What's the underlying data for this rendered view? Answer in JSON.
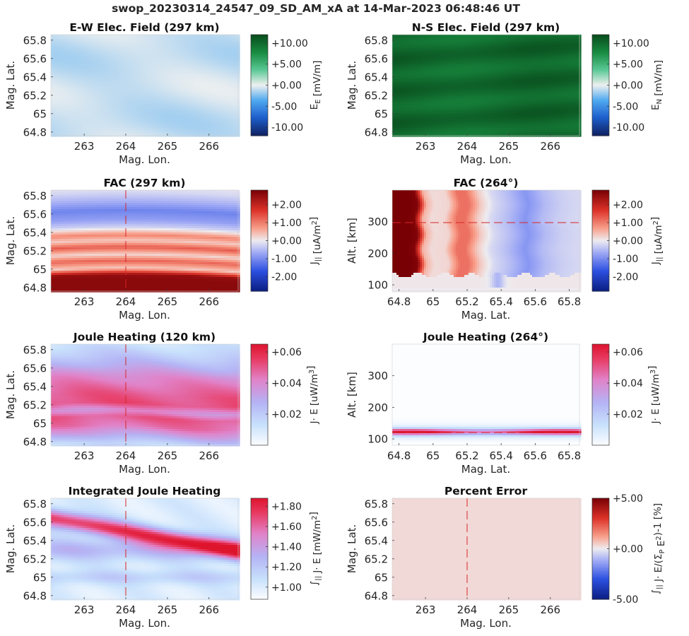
{
  "figure_title": "swop_20230314_24547_09_SD_AM_xA at 14-Mar-2023 06:48:46 UT",
  "chart_data": [
    {
      "type": "heatmap",
      "title": "E-W Elec. Field (297 km)",
      "xlabel": "Mag. Lon.",
      "ylabel": "Mag. Lat.",
      "xlim": [
        262.2,
        266.7
      ],
      "ylim": [
        64.76,
        65.86
      ],
      "xticks": [
        "263",
        "264",
        "265",
        "266"
      ],
      "xtick_values": [
        263,
        264,
        265,
        266
      ],
      "yticks": [
        "64.8",
        "65",
        "65.2",
        "65.4",
        "65.6",
        "65.8"
      ],
      "ytick_values": [
        64.8,
        65.0,
        65.2,
        65.4,
        65.6,
        65.8
      ],
      "colorbar": {
        "label": "E_E [mV/m]",
        "label_main": "E",
        "label_sub": "E",
        "label_rest": " [mV/m]",
        "colormap": "blue-white-green",
        "clim": [
          -12,
          12
        ],
        "ticks": [
          "+10.00",
          "+5.00",
          "+0.00",
          "-5.00",
          "-10.00"
        ],
        "tick_values": [
          10,
          5,
          0,
          -5,
          -10
        ]
      },
      "grid": false,
      "field_description": "nearly uniform, slightly negative (about -1 mV/m)",
      "value_range": [
        -1.5,
        0.3
      ]
    },
    {
      "type": "heatmap",
      "title": "N-S Elec. Field (297 km)",
      "xlabel": "Mag. Lon.",
      "ylabel": "Mag. Lat.",
      "xlim": [
        262.2,
        266.7
      ],
      "ylim": [
        64.76,
        65.86
      ],
      "xticks": [
        "263",
        "264",
        "265",
        "266"
      ],
      "xtick_values": [
        263,
        264,
        265,
        266
      ],
      "yticks": [
        "64.8",
        "65",
        "65.2",
        "65.4",
        "65.6",
        "65.8"
      ],
      "ytick_values": [
        64.8,
        65.0,
        65.2,
        65.4,
        65.6,
        65.8
      ],
      "colorbar": {
        "label": "E_N [mV/m]",
        "label_main": "E",
        "label_sub": "N",
        "label_rest": " [mV/m]",
        "colormap": "blue-white-green",
        "clim": [
          -12,
          12
        ],
        "ticks": [
          "+10.00",
          "+5.00",
          "+0.00",
          "-5.00",
          "-10.00"
        ],
        "tick_values": [
          10,
          5,
          0,
          -5,
          -10
        ]
      },
      "grid": false,
      "field_description": "strongly positive everywhere, with faint latitudinal bands",
      "value_range": [
        8.5,
        11.5
      ]
    },
    {
      "type": "heatmap",
      "title": "FAC (297 km)",
      "xlabel": "Mag. Lon.",
      "ylabel": "Mag. Lat.",
      "xlim": [
        262.2,
        266.7
      ],
      "ylim": [
        64.76,
        65.86
      ],
      "xticks": [
        "263",
        "264",
        "265",
        "266"
      ],
      "xtick_values": [
        263,
        264,
        265,
        266
      ],
      "yticks": [
        "64.8",
        "65",
        "65.2",
        "65.4",
        "65.6",
        "65.8"
      ],
      "ytick_values": [
        64.8,
        65.0,
        65.2,
        65.4,
        65.6,
        65.8
      ],
      "colorbar": {
        "label": "J_|| [uA/m^2]",
        "label_main": "J",
        "label_sub": "||",
        "label_rest": " [uA/m",
        "label_sup": "2",
        "label_end": "]",
        "colormap": "blue-white-red",
        "clim": [
          -2.8,
          2.8
        ],
        "ticks": [
          "+2.00",
          "+1.00",
          "+0.00",
          "-1.00",
          "-2.00"
        ],
        "tick_values": [
          2,
          1,
          0,
          -1,
          -2
        ]
      },
      "reference_line": {
        "axis": "x",
        "value": 264,
        "style": "dashed",
        "color": "#d62728"
      },
      "band_profile_lat": [
        64.76,
        64.84,
        64.9,
        64.97,
        65.05,
        65.12,
        65.2,
        65.27,
        65.33,
        65.42,
        65.5,
        65.6,
        65.7,
        65.8,
        65.86
      ],
      "band_profile_val": [
        2.6,
        2.6,
        2.5,
        0.3,
        1.2,
        0.2,
        1.3,
        0.3,
        0.9,
        -0.3,
        -0.8,
        -1.1,
        -0.6,
        -0.2,
        -0.1
      ],
      "arc_bulge_lat": 0.04,
      "arc_center_lon": 264.0,
      "grid": false
    },
    {
      "type": "heatmap",
      "title": "FAC (264°)",
      "xlabel": "Mag. Lat.",
      "ylabel": "Alt. [km]",
      "xlim": [
        64.76,
        65.86
      ],
      "ylim": [
        80,
        400
      ],
      "xticks": [
        "64.8",
        "65",
        "65.2",
        "65.4",
        "65.6",
        "65.8"
      ],
      "xtick_values": [
        64.8,
        65.0,
        65.2,
        65.4,
        65.6,
        65.8
      ],
      "yticks": [
        "100",
        "200",
        "300"
      ],
      "ytick_values": [
        100,
        200,
        300
      ],
      "colorbar": {
        "label": "J_|| [uA/m^2]",
        "label_main": "J",
        "label_sub": "||",
        "label_rest": " [uA/m",
        "label_sup": "2",
        "label_end": "]",
        "colormap": "blue-white-red",
        "clim": [
          -2.8,
          2.8
        ],
        "ticks": [
          "+2.00",
          "+1.00",
          "+0.00",
          "-1.00",
          "-2.00"
        ],
        "tick_values": [
          2,
          1,
          0,
          -1,
          -2
        ]
      },
      "reference_line": {
        "axis": "y",
        "value": 297,
        "style": "dashed",
        "color": "#d62728"
      },
      "column_profile_lat": [
        64.76,
        64.82,
        64.9,
        64.95,
        65.0,
        65.08,
        65.15,
        65.2,
        65.27,
        65.35,
        65.45,
        65.55,
        65.65,
        65.75,
        65.86
      ],
      "column_profile_val": [
        2.9,
        2.9,
        2.7,
        0.5,
        0.15,
        0.2,
        1.1,
        1.1,
        0.3,
        -0.2,
        -0.5,
        -0.9,
        -0.5,
        -0.3,
        -0.2
      ],
      "lower_boundary_alt_km": 130,
      "grid": false
    },
    {
      "type": "heatmap",
      "title": "Joule Heating (120 km)",
      "xlabel": "Mag. Lon.",
      "ylabel": "Mag. Lat.",
      "xlim": [
        262.2,
        266.7
      ],
      "ylim": [
        64.76,
        65.86
      ],
      "xticks": [
        "263",
        "264",
        "265",
        "266"
      ],
      "xtick_values": [
        263,
        264,
        265,
        266
      ],
      "yticks": [
        "64.8",
        "65",
        "65.2",
        "65.4",
        "65.6",
        "65.8"
      ],
      "ytick_values": [
        64.8,
        65.0,
        65.2,
        65.4,
        65.6,
        65.8
      ],
      "colorbar": {
        "label": "J·E [uW/m^3]",
        "label_main": "J· E [uW/m",
        "label_sup": "3",
        "label_end": "]",
        "colormap": "white-blue-pink-red",
        "clim": [
          0,
          0.065
        ],
        "ticks": [
          "+0.06",
          "+0.04",
          "+0.02"
        ],
        "tick_values": [
          0.06,
          0.04,
          0.02
        ]
      },
      "reference_line": {
        "axis": "x",
        "value": 264,
        "style": "dashed",
        "color": "#d62728"
      },
      "band_profile_lat": [
        64.76,
        64.85,
        64.95,
        65.05,
        65.12,
        65.2,
        65.3,
        65.4,
        65.5,
        65.6,
        65.7,
        65.8,
        65.86
      ],
      "band_profile_val": [
        0.015,
        0.03,
        0.045,
        0.05,
        0.038,
        0.052,
        0.05,
        0.045,
        0.04,
        0.03,
        0.022,
        0.015,
        0.012
      ],
      "grid": false
    },
    {
      "type": "heatmap",
      "title": "Joule Heating (264°)",
      "xlabel": "Mag. Lat.",
      "ylabel": "Alt. [km]",
      "xlim": [
        64.76,
        65.86
      ],
      "ylim": [
        80,
        400
      ],
      "xticks": [
        "64.8",
        "65",
        "65.2",
        "65.4",
        "65.6",
        "65.8"
      ],
      "xtick_values": [
        64.8,
        65.0,
        65.2,
        65.4,
        65.6,
        65.8
      ],
      "yticks": [
        "100",
        "200",
        "300"
      ],
      "ytick_values": [
        100,
        200,
        300
      ],
      "colorbar": {
        "label": "J·E [uW/m^3]",
        "label_main": "J· E [uW/m",
        "label_sup": "3",
        "label_end": "]",
        "colormap": "white-blue-pink-red",
        "clim": [
          0,
          0.065
        ],
        "ticks": [
          "+0.06",
          "+0.04",
          "+0.02"
        ],
        "tick_values": [
          0.06,
          0.04,
          0.02
        ]
      },
      "reference_line": {
        "axis": "y",
        "value": 120,
        "style": "dashed",
        "color": "#d62728"
      },
      "peak_alt_km": 122,
      "peak_value": 0.06,
      "grid": false
    },
    {
      "type": "heatmap",
      "title": "Integrated Joule Heating",
      "xlabel": "Mag. Lon.",
      "ylabel": "Mag. Lat.",
      "xlim": [
        262.2,
        266.7
      ],
      "ylim": [
        64.76,
        65.86
      ],
      "xticks": [
        "263",
        "264",
        "265",
        "266"
      ],
      "xtick_values": [
        263,
        264,
        265,
        266
      ],
      "yticks": [
        "64.8",
        "65",
        "65.2",
        "65.4",
        "65.6",
        "65.8"
      ],
      "ytick_values": [
        64.8,
        65.0,
        65.2,
        65.4,
        65.6,
        65.8
      ],
      "colorbar": {
        "label": "∫|| J·E [mW/m^2]",
        "label_main": "∫",
        "label_sub": "||",
        "label_rest": " J· E [mW/m",
        "label_sup": "2",
        "label_end": "]",
        "colormap": "white-blue-pink-red",
        "clim": [
          0.88,
          1.88
        ],
        "ticks": [
          "+1.80",
          "+1.60",
          "+1.40",
          "+1.20",
          "+1.00"
        ],
        "tick_values": [
          1.8,
          1.6,
          1.4,
          1.2,
          1.0
        ]
      },
      "reference_line": {
        "axis": "x",
        "value": 264,
        "style": "dashed",
        "color": "#d62728"
      },
      "grid": false
    },
    {
      "type": "heatmap",
      "title": "Percent Error",
      "xlabel": "Mag. Lon.",
      "ylabel": "Mag. Lat.",
      "xlim": [
        262.2,
        266.7
      ],
      "ylim": [
        64.76,
        65.86
      ],
      "xticks": [
        "263",
        "264",
        "265",
        "266"
      ],
      "xtick_values": [
        263,
        264,
        265,
        266
      ],
      "yticks": [
        "64.8",
        "65",
        "65.2",
        "65.4",
        "65.6",
        "65.8"
      ],
      "ytick_values": [
        64.8,
        65.0,
        65.2,
        65.4,
        65.6,
        65.8
      ],
      "colorbar": {
        "label": "∫|| J·E/(Σp E^2)-1 [%]",
        "label_main": "∫",
        "label_sub": "||",
        "label_rest": " J· E/(Σ",
        "label_sub2": "P",
        "label_mid": " E",
        "label_sup": "2",
        "label_end": ")-1 [%]",
        "colormap": "blue-white-red",
        "clim": [
          -5,
          5
        ],
        "ticks": [
          "+5.00",
          "+0.00",
          "-5.00"
        ],
        "tick_values": [
          5,
          0,
          -5
        ]
      },
      "reference_line": {
        "axis": "x",
        "value": 264,
        "style": "dashed",
        "color": "#d62728"
      },
      "uniform_value": 0.3,
      "grid": false
    }
  ]
}
